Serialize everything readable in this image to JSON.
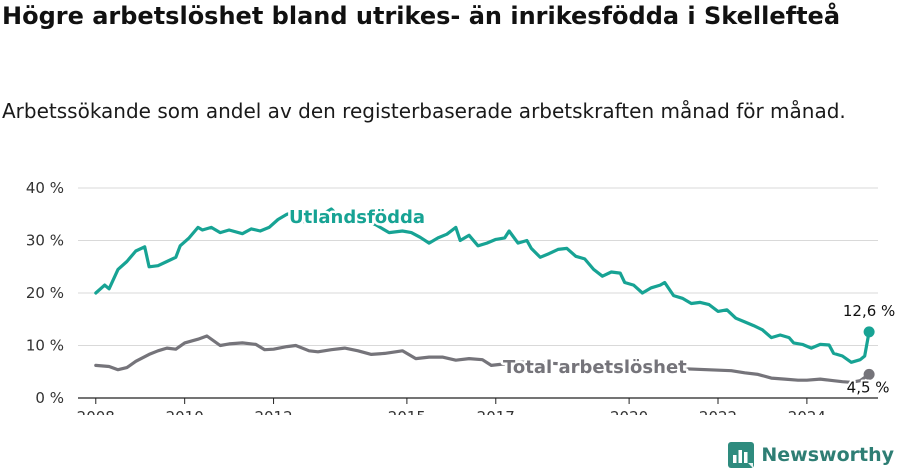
{
  "title": "Högre arbetslöshet bland utrikes- än inrikesfödda i Skellefteå",
  "subtitle": "Arbetssökande som andel av den registerbaserade arbetskraften månad för månad.",
  "brand": {
    "name": "Newsworthy"
  },
  "colors": {
    "utlandsfodda": "#17a394",
    "total": "#75747a",
    "grid": "#d9d9d9"
  },
  "chart_data": {
    "type": "line",
    "title": "Högre arbetslöshet bland utrikes- än inrikesfödda i Skellefteå",
    "subtitle": "Arbetssökande som andel av den registerbaserade arbetskraften månad för månad.",
    "ylim": [
      0,
      40
    ],
    "yticks": [
      "0 %",
      "10 %",
      "20 %",
      "30 %",
      "40 %"
    ],
    "ytick_values": [
      0,
      10,
      20,
      30,
      40
    ],
    "xlim": [
      2007.6,
      2025.6
    ],
    "xticks": [
      "2008",
      "2010",
      "2012",
      "2015",
      "2017",
      "2020",
      "2022",
      "2024"
    ],
    "xtick_values": [
      2008,
      2010,
      2012,
      2015,
      2017,
      2020,
      2022,
      2024
    ],
    "grid": true,
    "series": [
      {
        "name": "Utlandsfödda",
        "label": "Utlandsfödda",
        "color": "#17a394",
        "end_label": "12,6 %",
        "points": [
          [
            2008.0,
            20
          ],
          [
            2008.2,
            21.5
          ],
          [
            2008.3,
            20.8
          ],
          [
            2008.5,
            24.5
          ],
          [
            2008.7,
            26
          ],
          [
            2008.9,
            28
          ],
          [
            2009.1,
            28.8
          ],
          [
            2009.2,
            25
          ],
          [
            2009.4,
            25.2
          ],
          [
            2009.6,
            26
          ],
          [
            2009.8,
            26.8
          ],
          [
            2009.9,
            29
          ],
          [
            2010.1,
            30.5
          ],
          [
            2010.3,
            32.5
          ],
          [
            2010.4,
            32
          ],
          [
            2010.6,
            32.5
          ],
          [
            2010.8,
            31.5
          ],
          [
            2011.0,
            32
          ],
          [
            2011.3,
            31.3
          ],
          [
            2011.5,
            32.2
          ],
          [
            2011.7,
            31.8
          ],
          [
            2011.9,
            32.5
          ],
          [
            2012.1,
            34
          ],
          [
            2012.3,
            35
          ],
          [
            2012.5,
            35.5
          ],
          [
            2012.7,
            33.5
          ],
          [
            2013.0,
            34.5
          ],
          [
            2013.3,
            36
          ],
          [
            2013.6,
            33.5
          ],
          [
            2014.0,
            34
          ],
          [
            2014.3,
            33
          ],
          [
            2014.6,
            31.5
          ],
          [
            2014.9,
            31.8
          ],
          [
            2015.1,
            31.5
          ],
          [
            2015.3,
            30.6
          ],
          [
            2015.5,
            29.5
          ],
          [
            2015.7,
            30.5
          ],
          [
            2015.9,
            31.2
          ],
          [
            2016.1,
            32.5
          ],
          [
            2016.2,
            30
          ],
          [
            2016.4,
            31
          ],
          [
            2016.6,
            29
          ],
          [
            2016.8,
            29.5
          ],
          [
            2017.0,
            30.2
          ],
          [
            2017.2,
            30.5
          ],
          [
            2017.3,
            31.8
          ],
          [
            2017.5,
            29.5
          ],
          [
            2017.7,
            30
          ],
          [
            2017.8,
            28.5
          ],
          [
            2018.0,
            26.8
          ],
          [
            2018.2,
            27.5
          ],
          [
            2018.4,
            28.3
          ],
          [
            2018.6,
            28.5
          ],
          [
            2018.8,
            27
          ],
          [
            2019.0,
            26.5
          ],
          [
            2019.2,
            24.5
          ],
          [
            2019.4,
            23.2
          ],
          [
            2019.6,
            24
          ],
          [
            2019.8,
            23.8
          ],
          [
            2019.9,
            22
          ],
          [
            2020.1,
            21.5
          ],
          [
            2020.3,
            20
          ],
          [
            2020.5,
            21
          ],
          [
            2020.7,
            21.5
          ],
          [
            2020.8,
            22
          ],
          [
            2021.0,
            19.5
          ],
          [
            2021.2,
            19
          ],
          [
            2021.4,
            18
          ],
          [
            2021.6,
            18.2
          ],
          [
            2021.8,
            17.8
          ],
          [
            2022.0,
            16.5
          ],
          [
            2022.2,
            16.8
          ],
          [
            2022.4,
            15.2
          ],
          [
            2022.6,
            14.5
          ],
          [
            2022.8,
            13.8
          ],
          [
            2023.0,
            13
          ],
          [
            2023.2,
            11.5
          ],
          [
            2023.4,
            12
          ],
          [
            2023.6,
            11.5
          ],
          [
            2023.7,
            10.5
          ],
          [
            2023.9,
            10.2
          ],
          [
            2024.1,
            9.5
          ],
          [
            2024.3,
            10.2
          ],
          [
            2024.5,
            10.1
          ],
          [
            2024.6,
            8.5
          ],
          [
            2024.8,
            8
          ],
          [
            2025.0,
            6.8
          ],
          [
            2025.2,
            7.3
          ],
          [
            2025.3,
            8
          ],
          [
            2025.4,
            12.6
          ]
        ]
      },
      {
        "name": "Total arbetslöshet",
        "label": "Total arbetslöshet",
        "color": "#75747a",
        "end_label": "4,5 %",
        "points": [
          [
            2008.0,
            6.2
          ],
          [
            2008.3,
            6
          ],
          [
            2008.5,
            5.4
          ],
          [
            2008.7,
            5.8
          ],
          [
            2008.9,
            7
          ],
          [
            2009.2,
            8.3
          ],
          [
            2009.4,
            9
          ],
          [
            2009.6,
            9.5
          ],
          [
            2009.8,
            9.3
          ],
          [
            2010.0,
            10.5
          ],
          [
            2010.3,
            11.2
          ],
          [
            2010.5,
            11.8
          ],
          [
            2010.8,
            10
          ],
          [
            2011.0,
            10.3
          ],
          [
            2011.3,
            10.5
          ],
          [
            2011.6,
            10.2
          ],
          [
            2011.8,
            9.2
          ],
          [
            2012.0,
            9.3
          ],
          [
            2012.3,
            9.8
          ],
          [
            2012.5,
            10
          ],
          [
            2012.8,
            9
          ],
          [
            2013.0,
            8.8
          ],
          [
            2013.3,
            9.2
          ],
          [
            2013.6,
            9.5
          ],
          [
            2013.9,
            9
          ],
          [
            2014.2,
            8.3
          ],
          [
            2014.5,
            8.5
          ],
          [
            2014.9,
            9
          ],
          [
            2015.2,
            7.5
          ],
          [
            2015.5,
            7.8
          ],
          [
            2015.8,
            7.8
          ],
          [
            2016.1,
            7.2
          ],
          [
            2016.4,
            7.5
          ],
          [
            2016.7,
            7.3
          ],
          [
            2016.9,
            6.2
          ],
          [
            2017.2,
            6.5
          ],
          [
            2017.4,
            6.9
          ],
          [
            2022.3,
            5.2
          ],
          [
            2022.6,
            4.8
          ],
          [
            2022.9,
            4.5
          ],
          [
            2023.2,
            3.8
          ],
          [
            2023.5,
            3.6
          ],
          [
            2023.8,
            3.4
          ],
          [
            2024.0,
            3.4
          ],
          [
            2024.3,
            3.6
          ],
          [
            2024.6,
            3.3
          ],
          [
            2024.8,
            3.1
          ],
          [
            2025.0,
            3
          ],
          [
            2025.2,
            3.3
          ],
          [
            2025.4,
            4.5
          ]
        ]
      }
    ]
  }
}
